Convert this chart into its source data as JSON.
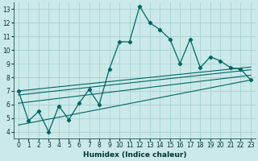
{
  "xlabel": "Humidex (Indice chaleur)",
  "bg_color": "#cce9e9",
  "grid_color": "#aad4d4",
  "line_color": "#006666",
  "xlim": [
    -0.5,
    23.5
  ],
  "ylim": [
    3.5,
    13.5
  ],
  "xticks": [
    0,
    1,
    2,
    3,
    4,
    5,
    6,
    7,
    8,
    9,
    10,
    11,
    12,
    13,
    14,
    15,
    16,
    17,
    18,
    19,
    20,
    21,
    22,
    23
  ],
  "yticks": [
    4,
    5,
    6,
    7,
    8,
    9,
    10,
    11,
    12,
    13
  ],
  "main_line": [
    [
      0,
      7.0
    ],
    [
      1,
      4.8
    ],
    [
      2,
      5.5
    ],
    [
      3,
      4.0
    ],
    [
      4,
      5.9
    ],
    [
      5,
      4.9
    ],
    [
      6,
      6.1
    ],
    [
      7,
      7.1
    ],
    [
      8,
      6.0
    ],
    [
      9,
      8.6
    ],
    [
      10,
      10.6
    ],
    [
      11,
      10.6
    ],
    [
      12,
      13.2
    ],
    [
      13,
      12.0
    ],
    [
      14,
      11.5
    ],
    [
      15,
      10.8
    ],
    [
      16,
      9.0
    ],
    [
      17,
      10.8
    ],
    [
      18,
      8.7
    ],
    [
      19,
      9.5
    ],
    [
      20,
      9.2
    ],
    [
      21,
      8.7
    ],
    [
      22,
      8.6
    ],
    [
      23,
      7.8
    ]
  ],
  "envelope_lines": [
    [
      [
        0,
        4.5
      ],
      [
        23,
        7.8
      ]
    ],
    [
      [
        0,
        6.1
      ],
      [
        23,
        8.15
      ]
    ],
    [
      [
        0,
        6.7
      ],
      [
        23,
        8.55
      ]
    ],
    [
      [
        0,
        7.0
      ],
      [
        23,
        8.75
      ]
    ]
  ]
}
